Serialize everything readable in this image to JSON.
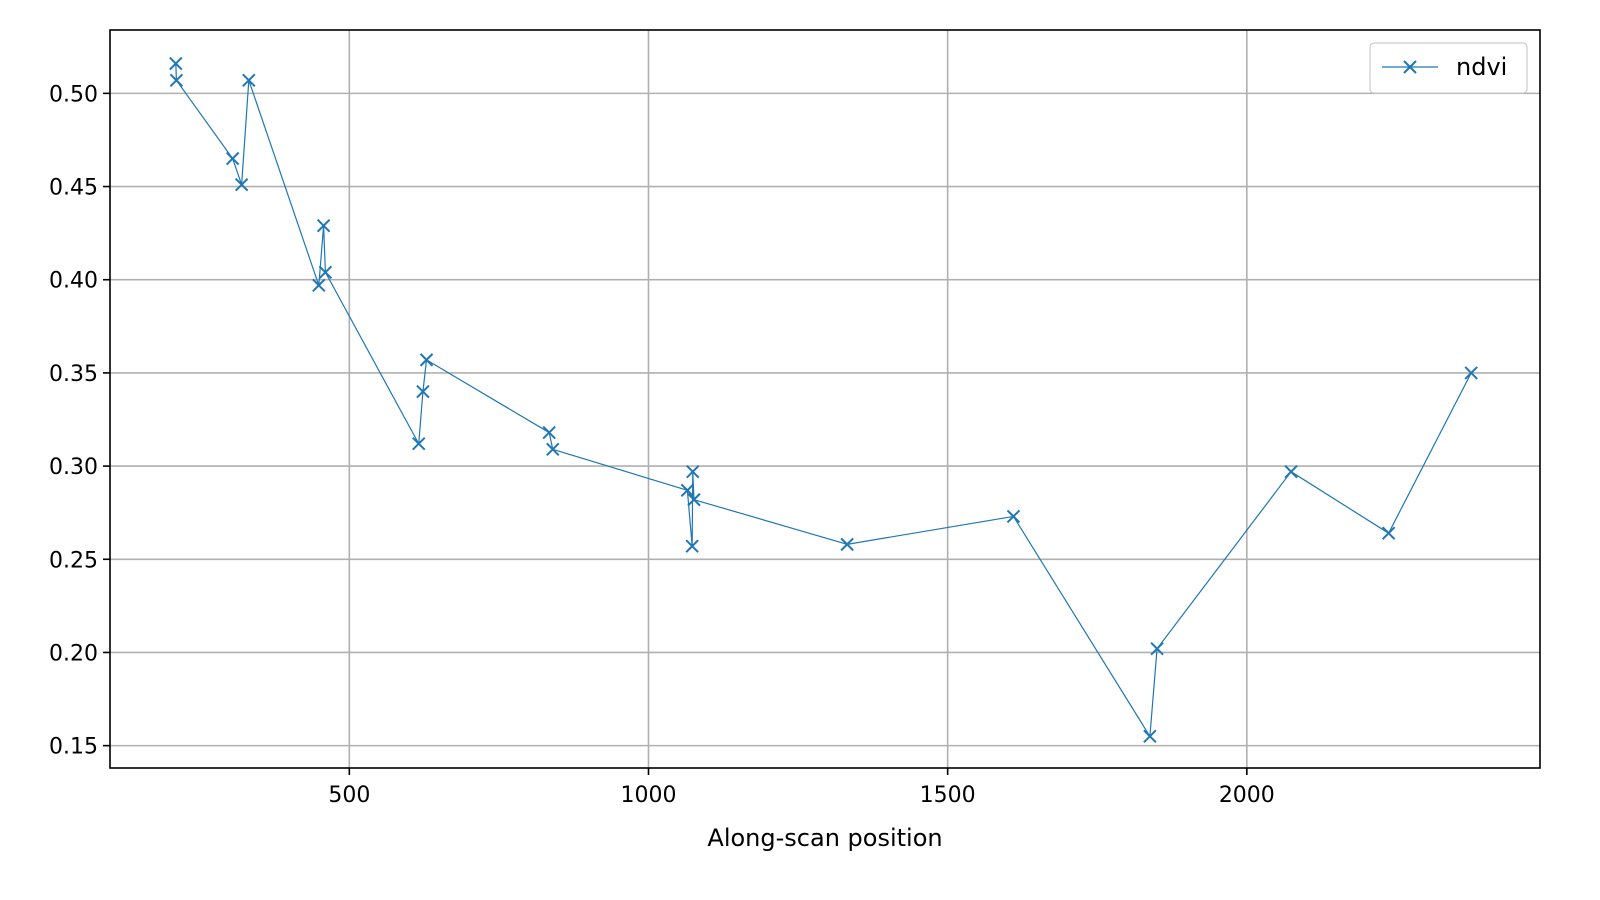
{
  "chart_data": {
    "type": "line",
    "title": "",
    "xlabel": "Along-scan position",
    "ylabel": "",
    "xlim": [
      100,
      2490
    ],
    "ylim": [
      0.138,
      0.534
    ],
    "xticks": [
      500,
      1000,
      1500,
      2000
    ],
    "xtick_labels": [
      "500",
      "1000",
      "1500",
      "2000"
    ],
    "yticks": [
      0.15,
      0.2,
      0.25,
      0.3,
      0.35,
      0.4,
      0.45,
      0.5
    ],
    "ytick_labels": [
      "0.15",
      "0.20",
      "0.25",
      "0.30",
      "0.35",
      "0.40",
      "0.45",
      "0.50"
    ],
    "grid": true,
    "legend_position": "top-right",
    "series": [
      {
        "name": "ndvi",
        "color": "#1f77b4",
        "marker": "x",
        "x": [
          210,
          211,
          305,
          320,
          332,
          449,
          457,
          460,
          616,
          623,
          629,
          834,
          840,
          1065,
          1073,
          1074,
          1076,
          1332,
          1610,
          1838,
          1850,
          2074,
          2237,
          2375
        ],
        "y": [
          0.516,
          0.507,
          0.465,
          0.451,
          0.507,
          0.397,
          0.429,
          0.404,
          0.312,
          0.34,
          0.357,
          0.318,
          0.309,
          0.287,
          0.257,
          0.297,
          0.282,
          0.258,
          0.273,
          0.155,
          0.202,
          0.297,
          0.264,
          0.35
        ]
      }
    ]
  }
}
